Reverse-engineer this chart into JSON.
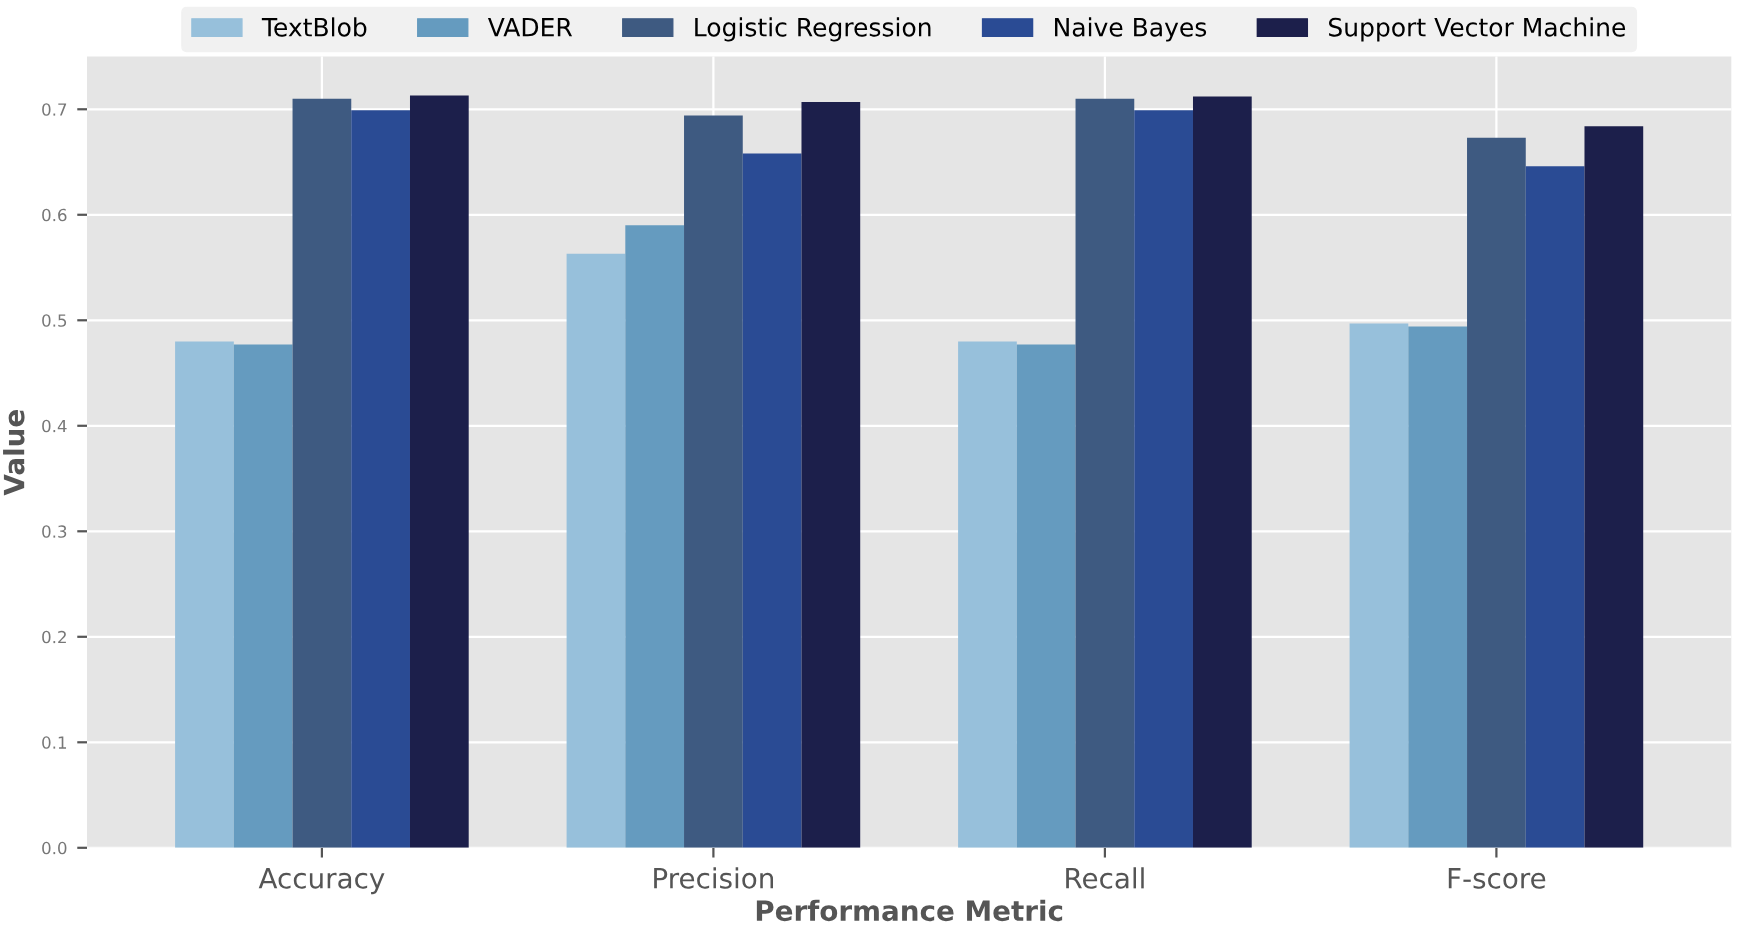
{
  "chart_data": {
    "type": "bar",
    "xlabel": "Performance Metric",
    "ylabel": "Value",
    "categories": [
      "Accuracy",
      "Precision",
      "Recall",
      "F-score"
    ],
    "series": [
      {
        "name": "TextBlob",
        "color": "#97c0db",
        "values": [
          0.48,
          0.563,
          0.48,
          0.497
        ]
      },
      {
        "name": "VADER",
        "color": "#659bbf",
        "values": [
          0.477,
          0.59,
          0.477,
          0.494
        ]
      },
      {
        "name": "Logistic Regression",
        "color": "#3e5a81",
        "values": [
          0.71,
          0.694,
          0.71,
          0.673
        ]
      },
      {
        "name": "Naive Bayes",
        "color": "#2a4b94",
        "values": [
          0.699,
          0.658,
          0.699,
          0.646
        ]
      },
      {
        "name": "Support Vector Machine",
        "color": "#1c1f4b",
        "values": [
          0.713,
          0.707,
          0.712,
          0.684
        ]
      }
    ],
    "ylim": [
      0,
      0.75
    ],
    "yticks": [
      {
        "value": 0,
        "label": "0.0"
      },
      0.1,
      0.2,
      0.3,
      0.4,
      0.5,
      0.6,
      0.7
    ],
    "grid": true,
    "legend": "top"
  }
}
